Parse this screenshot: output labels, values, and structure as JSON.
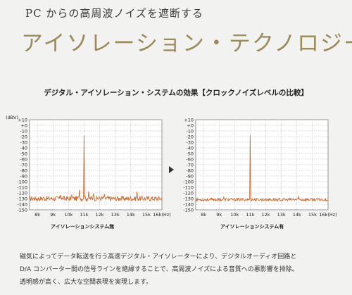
{
  "header": {
    "subtitle": "PC からの高周波ノイズを遮断する",
    "headline": "アイソレーション・テクノロジー"
  },
  "section_title": "デジタル・アイソレーション・システムの効果【クロックノイズレベルの比較】",
  "description": [
    "磁気によってデータ転送を行う高速デジタル・アイソレーターにより、デジタルオーディオ回路と",
    "D/A コンバーター間の信号ラインを絶縁することで、高周波ノイズによる音質への悪影響を排除。",
    "透明感が高く、広大な空間表現を実現します。"
  ],
  "colors": {
    "trace": "#d2692c",
    "grid": "#7a7a7a",
    "headline": "#9c8a5a",
    "arrow": "#333333"
  },
  "chart_data": [
    {
      "type": "line",
      "title": "アイソレーションシステム無",
      "ylabel": "(dBV)",
      "xlabel": "(Hz)",
      "y_ticks": [
        "+10",
        "+0",
        "-10",
        "-20",
        "-30",
        "-40",
        "-50",
        "-60",
        "-70",
        "-80",
        "-90",
        "-100",
        "-110",
        "-120",
        "-130",
        "-140",
        "-150"
      ],
      "x_ticks": [
        "8k",
        "9k",
        "10k",
        "11k",
        "12k",
        "13k",
        "14k",
        "15k",
        "16k(Hz)"
      ],
      "xlim": [
        7500,
        16000
      ],
      "ylim": [
        -150,
        10
      ],
      "noise_floor": -130,
      "peaks": [
        {
          "x": 11000,
          "y": 0
        },
        {
          "x": 10200,
          "y": -118
        },
        {
          "x": 9500,
          "y": -122
        },
        {
          "x": 10700,
          "y": -112
        },
        {
          "x": 11300,
          "y": -113
        },
        {
          "x": 11600,
          "y": -115
        },
        {
          "x": 12300,
          "y": -120
        },
        {
          "x": 14400,
          "y": -117
        },
        {
          "x": 8400,
          "y": -125
        }
      ]
    },
    {
      "type": "line",
      "title": "アイソレーションシステム有",
      "ylabel": "(dBV)",
      "xlabel": "(Hz)",
      "y_ticks": [
        "+10",
        "+0",
        "-10",
        "-20",
        "-30",
        "-40",
        "-50",
        "-60",
        "-70",
        "-80",
        "-90",
        "-100",
        "-110",
        "-120",
        "-130",
        "-140",
        "-150"
      ],
      "x_ticks": [
        "8k",
        "9k",
        "10k",
        "11k",
        "12k",
        "13k",
        "14k",
        "15k",
        "16k(Hz)"
      ],
      "xlim": [
        7500,
        16000
      ],
      "ylim": [
        -150,
        10
      ],
      "noise_floor": -132,
      "peaks": [
        {
          "x": 11000,
          "y": 0
        },
        {
          "x": 14100,
          "y": -125
        },
        {
          "x": 9300,
          "y": -127
        }
      ]
    }
  ]
}
